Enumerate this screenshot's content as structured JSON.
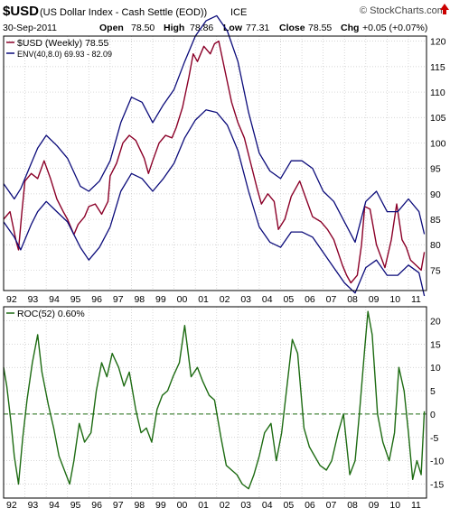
{
  "header": {
    "symbol": "$USD",
    "description": "(US Dollar Index - Cash Settle (EOD))",
    "exchange": "ICE",
    "date": "30-Sep-2011",
    "open_label": "Open",
    "open": "78.50",
    "high_label": "High",
    "high": "78.86",
    "low_label": "Low",
    "low": "77.31",
    "close_label": "Close",
    "close": "78.55",
    "chg_label": "Chg",
    "chg": "+0.05 (+0.07%)",
    "brand": "© StockCharts.com",
    "brand_icon": "up-arrow-icon"
  },
  "colors": {
    "price": "#8b0028",
    "envelope": "#0b0b7a",
    "roc": "#1d6b12",
    "zero_line": "#1d6b12",
    "grid": "#c8c8c8",
    "frame": "#000000",
    "arrow": "#cc0000"
  },
  "chart_data": [
    {
      "type": "line",
      "legend": [
        {
          "label": "$USD (Weekly) 78.55",
          "series": "price"
        },
        {
          "label": "ENV(40,8.0) 69.93 - 82.09",
          "series": "envelope"
        }
      ],
      "ylim": [
        71,
        121
      ],
      "yticks": [
        75,
        80,
        85,
        90,
        95,
        100,
        105,
        110,
        115,
        120
      ],
      "xlim": [
        1992.0,
        2011.85
      ],
      "xtick_labels": [
        "92",
        "93",
        "94",
        "95",
        "96",
        "97",
        "98",
        "99",
        "00",
        "01",
        "02",
        "03",
        "04",
        "05",
        "06",
        "07",
        "08",
        "09",
        "10",
        "11"
      ],
      "grid": true,
      "series": [
        {
          "name": "$USD (Weekly)",
          "key": "price",
          "x": [
            1992.0,
            1992.3,
            1992.6,
            1992.7,
            1992.85,
            1993.0,
            1993.3,
            1993.6,
            1993.9,
            1994.2,
            1994.5,
            1994.8,
            1995.0,
            1995.3,
            1995.5,
            1995.8,
            1996.0,
            1996.3,
            1996.6,
            1996.9,
            1997.0,
            1997.3,
            1997.6,
            1997.9,
            1998.2,
            1998.6,
            1998.8,
            1999.0,
            1999.3,
            1999.6,
            1999.9,
            2000.1,
            2000.4,
            2000.7,
            2000.9,
            2001.1,
            2001.4,
            2001.7,
            2001.9,
            2002.1,
            2002.4,
            2002.7,
            2003.0,
            2003.3,
            2003.6,
            2003.9,
            2004.1,
            2004.4,
            2004.7,
            2004.9,
            2005.2,
            2005.5,
            2005.9,
            2006.2,
            2006.5,
            2006.9,
            2007.2,
            2007.5,
            2007.9,
            2008.1,
            2008.3,
            2008.6,
            2008.8,
            2008.95,
            2009.2,
            2009.5,
            2009.9,
            2010.2,
            2010.45,
            2010.7,
            2010.9,
            2011.1,
            2011.35,
            2011.6,
            2011.75
          ],
          "values": [
            85.0,
            86.5,
            80.5,
            79.0,
            86.0,
            92.5,
            94.0,
            93.0,
            96.5,
            93.0,
            89.0,
            86.5,
            85.0,
            82.0,
            84.0,
            85.5,
            87.5,
            88.0,
            86.0,
            88.5,
            93.5,
            96.0,
            100.0,
            101.5,
            100.5,
            97.0,
            94.0,
            96.5,
            100.0,
            101.5,
            101.0,
            103.0,
            107.0,
            113.0,
            117.5,
            116.0,
            119.0,
            117.5,
            119.5,
            120.0,
            114.0,
            108.0,
            104.0,
            101.0,
            96.0,
            91.0,
            88.0,
            90.0,
            88.5,
            83.0,
            85.0,
            89.5,
            92.5,
            89.0,
            85.5,
            84.5,
            83.0,
            81.0,
            76.0,
            74.0,
            72.5,
            74.0,
            80.0,
            87.5,
            87.0,
            80.0,
            75.5,
            81.0,
            88.0,
            81.0,
            79.5,
            77.0,
            76.0,
            75.0,
            78.55
          ]
        },
        {
          "name": "ENV upper",
          "key": "envelope",
          "x": [
            1992.0,
            1992.5,
            1992.8,
            1993.3,
            1993.6,
            1994.0,
            1994.5,
            1995.0,
            1995.6,
            1996.0,
            1996.5,
            1997.0,
            1997.5,
            1998.0,
            1998.5,
            1999.0,
            1999.5,
            2000.0,
            2000.5,
            2001.0,
            2001.5,
            2002.0,
            2002.5,
            2003.0,
            2003.5,
            2004.0,
            2004.5,
            2005.0,
            2005.5,
            2006.0,
            2006.5,
            2007.0,
            2007.5,
            2008.0,
            2008.5,
            2009.0,
            2009.5,
            2010.0,
            2010.5,
            2011.0,
            2011.5,
            2011.75
          ],
          "values": [
            92.0,
            89.0,
            91.0,
            96.0,
            99.0,
            101.5,
            99.5,
            97.0,
            91.5,
            90.5,
            92.5,
            96.5,
            104.0,
            109.0,
            108.0,
            104.0,
            107.5,
            110.5,
            116.0,
            121.0,
            124.0,
            125.0,
            122.0,
            116.0,
            106.0,
            98.0,
            94.5,
            93.0,
            96.5,
            96.5,
            95.0,
            90.5,
            88.5,
            84.5,
            80.5,
            88.5,
            90.5,
            86.5,
            86.5,
            89.0,
            86.5,
            82.09
          ]
        },
        {
          "name": "ENV lower",
          "key": "envelope",
          "x": [
            1992.0,
            1992.5,
            1992.8,
            1993.3,
            1993.6,
            1994.0,
            1994.5,
            1995.0,
            1995.6,
            1996.0,
            1996.5,
            1997.0,
            1997.5,
            1998.0,
            1998.5,
            1999.0,
            1999.5,
            2000.0,
            2000.5,
            2001.0,
            2001.5,
            2002.0,
            2002.5,
            2003.0,
            2003.5,
            2004.0,
            2004.5,
            2005.0,
            2005.5,
            2006.0,
            2006.5,
            2007.0,
            2007.5,
            2008.0,
            2008.5,
            2009.0,
            2009.5,
            2010.0,
            2010.5,
            2011.0,
            2011.5,
            2011.75
          ],
          "values": [
            84.5,
            81.5,
            79.0,
            84.0,
            86.5,
            88.5,
            86.5,
            84.5,
            79.5,
            77.0,
            79.5,
            83.5,
            90.5,
            94.0,
            93.0,
            90.5,
            93.0,
            96.0,
            101.0,
            104.5,
            106.5,
            106.0,
            103.5,
            98.5,
            90.5,
            83.5,
            80.5,
            79.5,
            82.5,
            82.5,
            81.5,
            78.5,
            75.5,
            72.5,
            70.5,
            75.5,
            77.0,
            74.0,
            74.0,
            76.0,
            74.5,
            69.93
          ]
        }
      ]
    },
    {
      "type": "line",
      "legend": [
        {
          "label": "ROC(52) 0.60%",
          "series": "roc"
        }
      ],
      "ylim": [
        -18,
        23
      ],
      "yticks": [
        -15,
        -10,
        -5,
        0,
        5,
        10,
        15,
        20
      ],
      "xlim": [
        1992.0,
        2011.85
      ],
      "xtick_labels": [
        "92",
        "93",
        "94",
        "95",
        "96",
        "97",
        "98",
        "99",
        "00",
        "01",
        "02",
        "03",
        "04",
        "05",
        "06",
        "07",
        "08",
        "09",
        "10",
        "11"
      ],
      "grid": true,
      "zero_line": true,
      "series": [
        {
          "name": "ROC(52)",
          "key": "roc",
          "x": [
            1992.0,
            1992.15,
            1992.35,
            1992.5,
            1992.7,
            1992.9,
            1993.1,
            1993.35,
            1993.6,
            1993.8,
            1994.1,
            1994.35,
            1994.6,
            1994.85,
            1995.1,
            1995.3,
            1995.55,
            1995.8,
            1996.1,
            1996.35,
            1996.6,
            1996.85,
            1997.1,
            1997.4,
            1997.65,
            1997.9,
            1998.2,
            1998.45,
            1998.7,
            1998.95,
            1999.2,
            1999.45,
            1999.7,
            1999.95,
            2000.25,
            2000.5,
            2000.8,
            2001.1,
            2001.35,
            2001.65,
            2001.9,
            2002.2,
            2002.45,
            2002.7,
            2002.95,
            2003.2,
            2003.5,
            2003.75,
            2004.0,
            2004.25,
            2004.55,
            2004.8,
            2005.05,
            2005.3,
            2005.55,
            2005.8,
            2006.1,
            2006.35,
            2006.6,
            2006.85,
            2007.15,
            2007.4,
            2007.7,
            2007.95,
            2008.25,
            2008.5,
            2008.7,
            2008.95,
            2009.1,
            2009.3,
            2009.55,
            2009.8,
            2010.1,
            2010.35,
            2010.55,
            2010.8,
            2011.0,
            2011.2,
            2011.4,
            2011.6,
            2011.75
          ],
          "values": [
            10.0,
            6.0,
            -2.0,
            -9.0,
            -15.0,
            -5.0,
            3.0,
            11.0,
            17.0,
            9.0,
            2.0,
            -3.0,
            -9.0,
            -12.0,
            -15.0,
            -10.0,
            -2.0,
            -6.0,
            -4.0,
            5.0,
            11.0,
            8.0,
            13.0,
            10.0,
            6.0,
            9.0,
            1.0,
            -4.0,
            -3.0,
            -6.0,
            1.0,
            4.0,
            5.0,
            8.0,
            11.0,
            19.0,
            8.0,
            10.0,
            7.0,
            4.0,
            3.0,
            -5.0,
            -11.0,
            -12.0,
            -13.0,
            -15.0,
            -16.0,
            -13.0,
            -9.0,
            -4.0,
            -2.0,
            -10.0,
            -4.0,
            6.0,
            16.0,
            13.0,
            -3.0,
            -7.0,
            -9.0,
            -11.0,
            -12.0,
            -10.0,
            -4.0,
            0.0,
            -13.0,
            -10.0,
            0.0,
            14.0,
            22.0,
            17.0,
            0.0,
            -6.0,
            -10.0,
            -4.0,
            10.0,
            5.0,
            -4.0,
            -14.0,
            -10.0,
            -13.0,
            0.6
          ]
        }
      ]
    }
  ]
}
